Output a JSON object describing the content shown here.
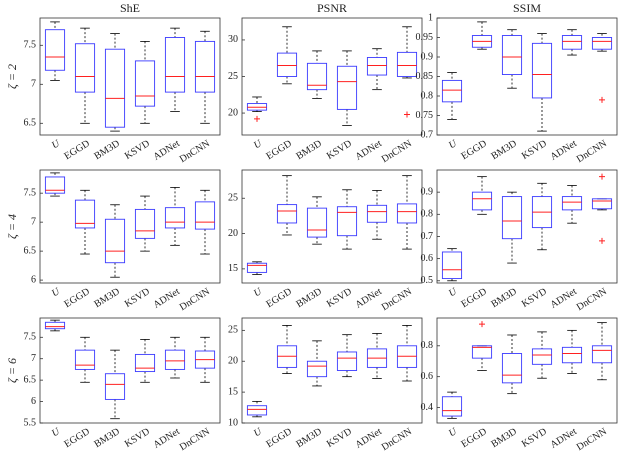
{
  "chart_data": [
    {
      "type": "box",
      "title": "ShE",
      "ylabel": "ζ = 2",
      "categories": [
        "U",
        "EGGD",
        "BM3D",
        "KSVD",
        "ADNet",
        "DnCNN"
      ],
      "boxes": [
        {
          "min": 7.05,
          "q1": 7.18,
          "median": 7.35,
          "q3": 7.7,
          "max": 7.8
        },
        {
          "min": 6.5,
          "q1": 6.9,
          "median": 7.1,
          "q3": 7.52,
          "max": 7.72
        },
        {
          "min": 6.4,
          "q1": 6.45,
          "median": 6.82,
          "q3": 7.45,
          "max": 7.65
        },
        {
          "min": 6.5,
          "q1": 6.72,
          "median": 6.85,
          "q3": 7.3,
          "max": 7.55
        },
        {
          "min": 6.65,
          "q1": 6.9,
          "median": 7.1,
          "q3": 7.6,
          "max": 7.72
        },
        {
          "min": 6.5,
          "q1": 6.9,
          "median": 7.1,
          "q3": 7.55,
          "max": 7.68
        }
      ],
      "ylim": [
        6.35,
        7.85
      ],
      "yticks": [
        6.5,
        7,
        7.5
      ],
      "box_color": "#3a3aff",
      "median_color": "#ff2020"
    },
    {
      "type": "box",
      "title": "PSNR",
      "categories": [
        "U",
        "EGGD",
        "BM3D",
        "KSVD",
        "ADNet",
        "DnCNN"
      ],
      "boxes": [
        {
          "min": 20.2,
          "q1": 20.4,
          "median": 20.8,
          "q3": 21.3,
          "max": 22.2,
          "outliers": [
            19.2
          ]
        },
        {
          "min": 24,
          "q1": 25,
          "median": 26.5,
          "q3": 28.2,
          "max": 31.8
        },
        {
          "min": 22,
          "q1": 23.2,
          "median": 23.8,
          "q3": 26.8,
          "max": 28.5
        },
        {
          "min": 18.3,
          "q1": 20.5,
          "median": 24.3,
          "q3": 26.4,
          "max": 28.5
        },
        {
          "min": 23.2,
          "q1": 25.2,
          "median": 26.5,
          "q3": 27.6,
          "max": 28.8
        },
        {
          "min": 24.8,
          "q1": 25,
          "median": 26.5,
          "q3": 28.3,
          "max": 31.8,
          "outliers": [
            19.8
          ]
        }
      ],
      "ylim": [
        17,
        33
      ],
      "yticks": [
        20,
        25,
        30
      ],
      "box_color": "#3a3aff",
      "median_color": "#ff2020"
    },
    {
      "type": "box",
      "title": "SSIM",
      "categories": [
        "U",
        "EGGD",
        "BM3D",
        "KSVD",
        "ADNet",
        "DnCNN"
      ],
      "boxes": [
        {
          "min": 0.74,
          "q1": 0.785,
          "median": 0.815,
          "q3": 0.84,
          "max": 0.86
        },
        {
          "min": 0.92,
          "q1": 0.925,
          "median": 0.94,
          "q3": 0.955,
          "max": 0.99
        },
        {
          "min": 0.82,
          "q1": 0.855,
          "median": 0.9,
          "q3": 0.955,
          "max": 0.97
        },
        {
          "min": 0.71,
          "q1": 0.795,
          "median": 0.855,
          "q3": 0.935,
          "max": 0.96
        },
        {
          "min": 0.905,
          "q1": 0.92,
          "median": 0.94,
          "q3": 0.955,
          "max": 0.97
        },
        {
          "min": 0.915,
          "q1": 0.92,
          "median": 0.94,
          "q3": 0.95,
          "max": 0.96,
          "outliers": [
            0.79
          ]
        }
      ],
      "ylim": [
        0.7,
        1
      ],
      "yticks": [
        0.7,
        0.75,
        0.8,
        0.85,
        0.9,
        0.95,
        1
      ],
      "box_color": "#3a3aff",
      "median_color": "#ff2020"
    },
    {
      "type": "box",
      "ylabel": "ζ = 4",
      "categories": [
        "U",
        "EGGD",
        "BM3D",
        "KSVD",
        "ADNet",
        "DnCNN"
      ],
      "boxes": [
        {
          "min": 7.45,
          "q1": 7.5,
          "median": 7.55,
          "q3": 7.78,
          "max": 7.85
        },
        {
          "min": 6.45,
          "q1": 6.9,
          "median": 6.98,
          "q3": 7.38,
          "max": 7.55
        },
        {
          "min": 6.05,
          "q1": 6.3,
          "median": 6.5,
          "q3": 7.05,
          "max": 7.3
        },
        {
          "min": 6.5,
          "q1": 6.72,
          "median": 6.85,
          "q3": 7.22,
          "max": 7.45
        },
        {
          "min": 6.6,
          "q1": 6.9,
          "median": 7.0,
          "q3": 7.25,
          "max": 7.6
        },
        {
          "min": 6.45,
          "q1": 6.88,
          "median": 7.0,
          "q3": 7.35,
          "max": 7.55
        }
      ],
      "ylim": [
        5.95,
        7.9
      ],
      "yticks": [
        6,
        6.5,
        7,
        7.5
      ],
      "box_color": "#3a3aff",
      "median_color": "#ff2020"
    },
    {
      "type": "box",
      "categories": [
        "U",
        "EGGD",
        "BM3D",
        "KSVD",
        "ADNet",
        "DnCNN"
      ],
      "boxes": [
        {
          "min": 14.2,
          "q1": 14.5,
          "median": 15.5,
          "q3": 15.8,
          "max": 16
        },
        {
          "min": 19.8,
          "q1": 21.5,
          "median": 23.2,
          "q3": 24.1,
          "max": 28.2
        },
        {
          "min": 18.5,
          "q1": 19.5,
          "median": 20.5,
          "q3": 23.6,
          "max": 25.2
        },
        {
          "min": 17.8,
          "q1": 19.7,
          "median": 23,
          "q3": 23.8,
          "max": 26.2
        },
        {
          "min": 19.2,
          "q1": 21.6,
          "median": 23.1,
          "q3": 24,
          "max": 26.1
        },
        {
          "min": 17.8,
          "q1": 21.5,
          "median": 23.1,
          "q3": 24.2,
          "max": 28.2
        }
      ],
      "ylim": [
        13,
        29
      ],
      "yticks": [
        15,
        20,
        25
      ],
      "box_color": "#3a3aff",
      "median_color": "#ff2020"
    },
    {
      "type": "box",
      "categories": [
        "U",
        "EGGD",
        "BM3D",
        "KSVD",
        "ADNet",
        "DnCNN"
      ],
      "boxes": [
        {
          "min": 0.5,
          "q1": 0.51,
          "median": 0.55,
          "q3": 0.63,
          "max": 0.645
        },
        {
          "min": 0.8,
          "q1": 0.82,
          "median": 0.87,
          "q3": 0.9,
          "max": 0.97
        },
        {
          "min": 0.58,
          "q1": 0.69,
          "median": 0.77,
          "q3": 0.88,
          "max": 0.9
        },
        {
          "min": 0.64,
          "q1": 0.74,
          "median": 0.81,
          "q3": 0.88,
          "max": 0.94
        },
        {
          "min": 0.76,
          "q1": 0.82,
          "median": 0.855,
          "q3": 0.88,
          "max": 0.93
        },
        {
          "min": 0.82,
          "q1": 0.825,
          "median": 0.86,
          "q3": 0.87,
          "max": 0.87,
          "outliers": [
            0.97,
            0.68
          ]
        }
      ],
      "ylim": [
        0.49,
        1
      ],
      "yticks": [
        0.5,
        0.6,
        0.7,
        0.8,
        0.9
      ],
      "box_color": "#3a3aff",
      "median_color": "#ff2020"
    },
    {
      "type": "box",
      "ylabel": "ζ = 6",
      "categories": [
        "U",
        "EGGD",
        "BM3D",
        "KSVD",
        "ADNet",
        "DnCNN"
      ],
      "boxes": [
        {
          "min": 7.65,
          "q1": 7.7,
          "median": 7.75,
          "q3": 7.85,
          "max": 7.9
        },
        {
          "min": 6.45,
          "q1": 6.75,
          "median": 6.85,
          "q3": 7.2,
          "max": 7.5
        },
        {
          "min": 5.6,
          "q1": 6.05,
          "median": 6.4,
          "q3": 6.65,
          "max": 7.2
        },
        {
          "min": 6.45,
          "q1": 6.7,
          "median": 6.78,
          "q3": 7.1,
          "max": 7.45
        },
        {
          "min": 6.55,
          "q1": 6.75,
          "median": 6.95,
          "q3": 7.2,
          "max": 7.5
        },
        {
          "min": 6.45,
          "q1": 6.78,
          "median": 6.98,
          "q3": 7.18,
          "max": 7.5
        }
      ],
      "ylim": [
        5.5,
        7.95
      ],
      "yticks": [
        5.5,
        6,
        6.5,
        7,
        7.5
      ],
      "box_color": "#3a3aff",
      "median_color": "#ff2020"
    },
    {
      "type": "box",
      "categories": [
        "U",
        "EGGD",
        "BM3D",
        "KSVD",
        "ADNet",
        "DnCNN"
      ],
      "boxes": [
        {
          "min": 11,
          "q1": 11.3,
          "median": 12.2,
          "q3": 12.8,
          "max": 13.5
        },
        {
          "min": 18,
          "q1": 19,
          "median": 20.8,
          "q3": 22.5,
          "max": 25.8
        },
        {
          "min": 16,
          "q1": 17.5,
          "median": 19.2,
          "q3": 20,
          "max": 23.3
        },
        {
          "min": 17.5,
          "q1": 18.5,
          "median": 20.5,
          "q3": 21.5,
          "max": 24.3
        },
        {
          "min": 17.2,
          "q1": 19,
          "median": 20.5,
          "q3": 22,
          "max": 24.5
        },
        {
          "min": 16.8,
          "q1": 19,
          "median": 20.8,
          "q3": 22.5,
          "max": 25.8
        }
      ],
      "ylim": [
        10,
        27
      ],
      "yticks": [
        10,
        15,
        20,
        25
      ],
      "box_color": "#3a3aff",
      "median_color": "#ff2020"
    },
    {
      "type": "box",
      "categories": [
        "U",
        "EGGD",
        "BM3D",
        "KSVD",
        "ADNet",
        "DnCNN"
      ],
      "boxes": [
        {
          "min": 0.33,
          "q1": 0.345,
          "median": 0.38,
          "q3": 0.47,
          "max": 0.5
        },
        {
          "min": 0.64,
          "q1": 0.72,
          "median": 0.79,
          "q3": 0.8,
          "max": 0.8,
          "outliers": [
            0.94
          ]
        },
        {
          "min": 0.49,
          "q1": 0.56,
          "median": 0.61,
          "q3": 0.75,
          "max": 0.87
        },
        {
          "min": 0.59,
          "q1": 0.68,
          "median": 0.74,
          "q3": 0.78,
          "max": 0.89
        },
        {
          "min": 0.62,
          "q1": 0.69,
          "median": 0.75,
          "q3": 0.79,
          "max": 0.9
        },
        {
          "min": 0.58,
          "q1": 0.69,
          "median": 0.77,
          "q3": 0.8,
          "max": 0.95
        }
      ],
      "ylim": [
        0.3,
        0.98
      ],
      "yticks": [
        0.4,
        0.6,
        0.8
      ],
      "box_color": "#3a3aff",
      "median_color": "#ff2020"
    }
  ]
}
